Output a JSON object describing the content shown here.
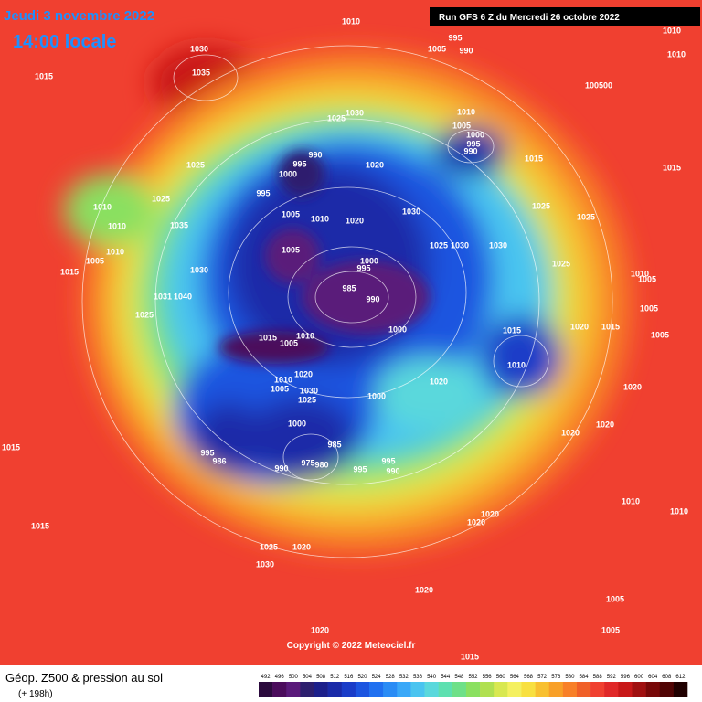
{
  "header": {
    "date": "Jeudi 3 novembre 2022",
    "time": "14:00 locale",
    "run": "Run GFS 6 Z du Mercredi 26 octobre 2022"
  },
  "footer": {
    "title": "Géop. Z500 & pression au sol",
    "lead": "(+ 198h)",
    "copyright": "Copyright © 2022 Meteociel.fr"
  },
  "scale": {
    "labels": [
      492,
      496,
      500,
      504,
      508,
      512,
      516,
      520,
      524,
      528,
      532,
      536,
      540,
      544,
      548,
      552,
      556,
      560,
      564,
      568,
      572,
      576,
      580,
      584,
      588,
      592,
      596,
      600,
      604,
      608,
      612
    ],
    "colors": [
      "#2b0a3d",
      "#4b0c5c",
      "#5a1a7a",
      "#2d1f6e",
      "#1c1f8a",
      "#1a2aa8",
      "#1a3cc8",
      "#1c55e0",
      "#2070f0",
      "#2a8cf5",
      "#3aa8f8",
      "#4ac4f0",
      "#5ad8dc",
      "#5ee0b0",
      "#6ee088",
      "#8ae060",
      "#b0e050",
      "#d8e850",
      "#f4f060",
      "#f8e040",
      "#f8c030",
      "#f8a028",
      "#f88028",
      "#f06028",
      "#f04030",
      "#e02828",
      "#c81818",
      "#a01010",
      "#780808",
      "#500404",
      "#200000"
    ]
  },
  "pressure_labels": [
    "1010",
    "995",
    "1005",
    "990",
    "1030",
    "1035",
    "1015",
    "1010",
    "1010",
    "100500",
    "1025",
    "1025",
    "1030",
    "1010",
    "1005",
    "1000",
    "995",
    "990",
    "1015",
    "1015",
    "990",
    "995",
    "1000",
    "1020",
    "995",
    "1025",
    "1010",
    "1005",
    "1010",
    "1020",
    "1030",
    "1025",
    "1025",
    "1035",
    "1010",
    "1005",
    "1025",
    "1030",
    "1030",
    "1010",
    "1005",
    "1030",
    "1015",
    "1000",
    "995",
    "1025",
    "1010",
    "1005",
    "1031",
    "1040",
    "985",
    "990",
    "1025",
    "1005",
    "1000",
    "1015",
    "1020",
    "1015",
    "1005",
    "1015",
    "1005",
    "1010",
    "1010",
    "1020",
    "1010",
    "1020",
    "1005",
    "1030",
    "1025",
    "1000",
    "1020",
    "1000",
    "1020",
    "1020",
    "985",
    "995",
    "1015",
    "986",
    "990",
    "975",
    "980",
    "995",
    "995",
    "990",
    "1010",
    "1010",
    "1020",
    "1020",
    "1015",
    "1025",
    "1020",
    "1030",
    "1020",
    "1005",
    "1005",
    "1020",
    "1015"
  ]
}
